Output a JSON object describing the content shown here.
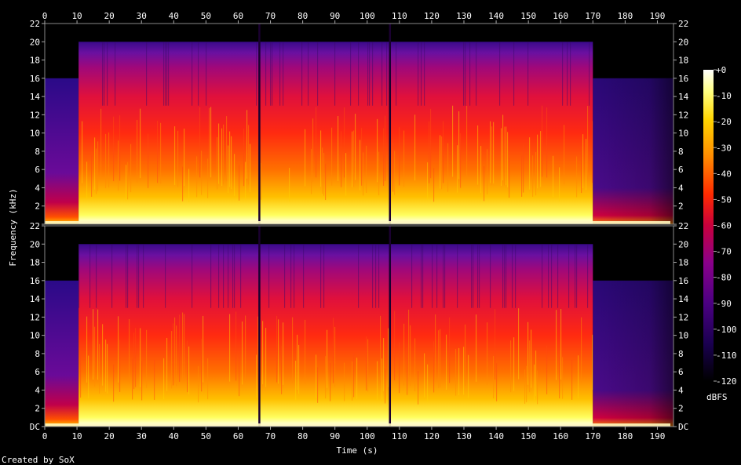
{
  "chart_data": {
    "type": "heatmap",
    "xlabel": "Time (s)",
    "ylabel": "Frequency (kHz)",
    "x_ticks": [
      0,
      10,
      20,
      30,
      40,
      50,
      60,
      70,
      80,
      90,
      100,
      110,
      120,
      130,
      140,
      150,
      160,
      170,
      180,
      190
    ],
    "xlim": [
      0,
      195
    ],
    "channels": [
      {
        "y_ticks": [
          "DC",
          "2",
          "4",
          "6",
          "8",
          "10",
          "12",
          "14",
          "16",
          "18",
          "20",
          "22"
        ],
        "ylim": [
          0,
          22
        ]
      },
      {
        "y_ticks": [
          "DC",
          "2",
          "4",
          "6",
          "8",
          "10",
          "12",
          "14",
          "16",
          "18",
          "20",
          "22"
        ],
        "ylim": [
          0,
          22
        ]
      }
    ],
    "colorbar": {
      "label": "dBFS",
      "ticks": [
        "+0",
        "-10",
        "-20",
        "-30",
        "-40",
        "-50",
        "-60",
        "-70",
        "-80",
        "-90",
        "-100",
        "-110",
        "-120"
      ],
      "range": [
        -120,
        0
      ],
      "colors": [
        "#000000",
        "#1a0050",
        "#4b0082",
        "#8a008a",
        "#c8003c",
        "#ff2a00",
        "#ff8a00",
        "#ffd400",
        "#ffff80",
        "#ffffff"
      ]
    },
    "segments_s": [
      {
        "start": 0,
        "end": 10.5,
        "bandlimit_khz": 16,
        "level": "low"
      },
      {
        "start": 10.5,
        "end": 170,
        "bandlimit_khz": 20,
        "level": "high"
      },
      {
        "start": 170,
        "end": 195,
        "bandlimit_khz": 16,
        "level": "fade"
      }
    ],
    "dropouts_s": [
      66.5,
      107
    ]
  },
  "footer": {
    "credit": "Created by SoX"
  }
}
